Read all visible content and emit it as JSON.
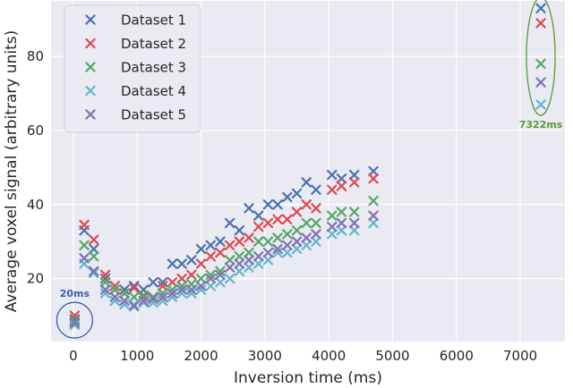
{
  "chart_data": {
    "type": "scatter",
    "xlabel": "Inversion time (ms)",
    "ylabel": "Average voxel signal (arbitrary units)",
    "xlim": [
      -350,
      7700
    ],
    "ylim": [
      3,
      95
    ],
    "xticks": [
      0,
      1000,
      2000,
      3000,
      4000,
      5000,
      6000,
      7000
    ],
    "yticks": [
      20,
      40,
      60,
      80
    ],
    "grid": true,
    "background": "#eaeaf2",
    "legend_position": "top-left",
    "series": [
      {
        "name": "Dataset 1",
        "color": "#4c72b0",
        "x": [
          20,
          170,
          320,
          500,
          650,
          800,
          950,
          1100,
          1250,
          1400,
          1550,
          1700,
          1850,
          2000,
          2150,
          2300,
          2450,
          2600,
          2750,
          2900,
          3050,
          3200,
          3350,
          3500,
          3650,
          3800,
          4050,
          4200,
          4400,
          4700,
          7322
        ],
        "y": [
          9,
          33,
          28,
          20,
          17,
          17,
          18,
          17,
          19,
          19,
          24,
          24,
          25,
          28,
          29,
          30,
          35,
          33,
          39,
          37,
          40,
          40,
          42,
          43,
          46,
          44,
          48,
          47,
          48,
          49,
          93
        ]
      },
      {
        "name": "Dataset 2",
        "color": "#dd4a51",
        "x": [
          20,
          170,
          320,
          500,
          650,
          800,
          950,
          1100,
          1250,
          1400,
          1550,
          1700,
          1850,
          2000,
          2150,
          2300,
          2450,
          2600,
          2750,
          2900,
          3050,
          3200,
          3350,
          3500,
          3650,
          3800,
          4050,
          4200,
          4400,
          4700,
          7322
        ],
        "y": [
          10,
          34.5,
          30.5,
          21,
          18,
          16,
          17.5,
          15,
          15,
          18,
          19,
          20,
          21,
          24,
          26,
          27,
          29,
          30,
          31,
          34,
          35,
          36,
          36,
          38,
          40,
          39,
          44,
          45,
          46,
          47,
          89
        ]
      },
      {
        "name": "Dataset 3",
        "color": "#55a868",
        "x": [
          20,
          170,
          320,
          500,
          650,
          800,
          950,
          1100,
          1250,
          1400,
          1550,
          1700,
          1850,
          2000,
          2150,
          2300,
          2450,
          2600,
          2750,
          2900,
          3050,
          3200,
          3350,
          3500,
          3650,
          3800,
          4050,
          4200,
          4400,
          4700,
          7322
        ],
        "y": [
          8.5,
          29,
          26,
          19,
          17,
          16,
          15,
          15.5,
          15,
          16,
          17,
          18,
          18.5,
          20,
          21,
          22,
          25,
          26,
          27,
          30,
          30,
          31,
          32,
          33,
          35,
          35,
          37,
          38,
          38,
          41,
          78
        ]
      },
      {
        "name": "Dataset 4",
        "color": "#64b5cd",
        "x": [
          20,
          170,
          320,
          500,
          650,
          800,
          950,
          1100,
          1250,
          1400,
          1550,
          1700,
          1850,
          2000,
          2150,
          2300,
          2450,
          2600,
          2750,
          2900,
          3050,
          3200,
          3350,
          3500,
          3650,
          3800,
          4050,
          4200,
          4400,
          4700,
          7322
        ],
        "y": [
          7.5,
          24,
          21.5,
          16,
          14,
          13,
          13,
          13.5,
          13.5,
          14,
          15,
          16,
          16,
          17,
          18,
          19,
          20,
          22,
          23,
          24,
          25,
          27,
          27,
          28,
          29,
          30,
          32,
          33,
          33,
          35,
          67
        ]
      },
      {
        "name": "Dataset 5",
        "color": "#8172b2",
        "x": [
          20,
          170,
          320,
          500,
          650,
          800,
          950,
          1100,
          1250,
          1400,
          1550,
          1700,
          1850,
          2000,
          2150,
          2300,
          2450,
          2600,
          2750,
          2900,
          3050,
          3200,
          3350,
          3500,
          3650,
          3800,
          4050,
          4200,
          4400,
          4700,
          7322
        ],
        "y": [
          8,
          25.5,
          22,
          17,
          15,
          14,
          12.5,
          14,
          14.5,
          15,
          16,
          17,
          17,
          18,
          20,
          21,
          23,
          24,
          25,
          26,
          27,
          28,
          29,
          30,
          31,
          32,
          34,
          35,
          35,
          37,
          73
        ]
      }
    ],
    "annotations": [
      {
        "text": "20ms",
        "color": "#3a5fb0",
        "target": "first-points"
      },
      {
        "text": "7322ms",
        "color": "#5a9a3a",
        "target": "last-points"
      }
    ]
  }
}
